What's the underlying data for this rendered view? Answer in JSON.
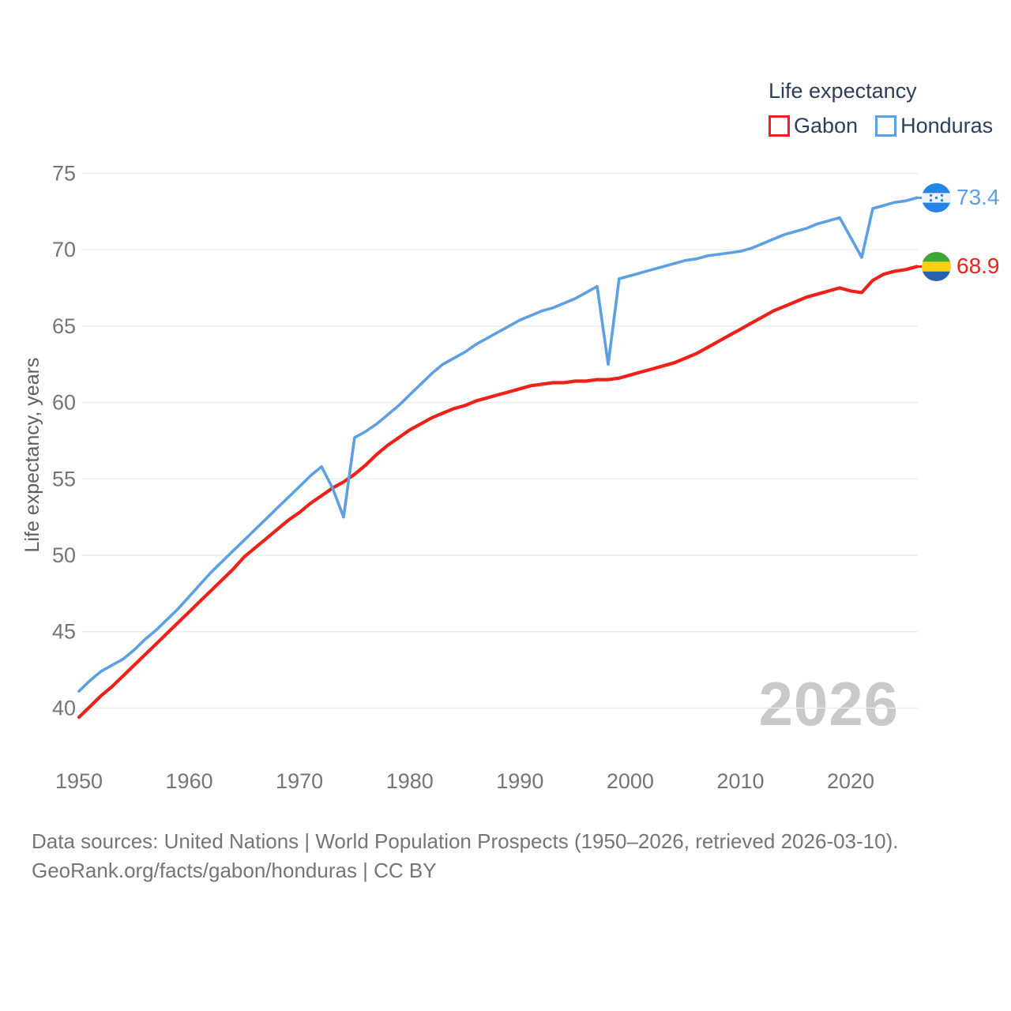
{
  "legend": {
    "title": "Life expectancy",
    "items": [
      {
        "label": "Gabon",
        "color": "#ef2017"
      },
      {
        "label": "Honduras",
        "color": "#5c9fe2"
      }
    ]
  },
  "y_axis": {
    "title": "Life expectancy, years",
    "ticks": [
      40,
      45,
      50,
      55,
      60,
      65,
      70,
      75
    ]
  },
  "x_axis": {
    "ticks": [
      1950,
      1960,
      1970,
      1980,
      1990,
      2000,
      2010,
      2020
    ]
  },
  "end_labels": {
    "honduras": {
      "value": "73.4",
      "flag": "honduras-flag"
    },
    "gabon": {
      "value": "68.9",
      "flag": "gabon-flag"
    }
  },
  "watermark": "2026",
  "footer": {
    "line1": "Data sources: United Nations | World Population Prospects (1950–2026, retrieved 2026-03-10).",
    "line2": "GeoRank.org/facts/gabon/honduras | CC BY"
  },
  "chart_data": {
    "type": "line",
    "title": "Life expectancy",
    "xlabel": "",
    "ylabel": "Life expectancy, years",
    "x_start": 1950,
    "x_end": 2026,
    "xlim": [
      1950,
      2026
    ],
    "ylim": [
      39,
      75.5
    ],
    "grid": "horizontal",
    "legend_position": "top-right",
    "xticks": [
      1950,
      1960,
      1970,
      1980,
      1990,
      2000,
      2010,
      2020
    ],
    "yticks": [
      40,
      45,
      50,
      55,
      60,
      65,
      70,
      75
    ],
    "series": [
      {
        "name": "Gabon",
        "color": "#ef2017",
        "end_value": 68.9,
        "values": [
          39.4,
          40.1,
          40.8,
          41.4,
          42.1,
          42.8,
          43.5,
          44.2,
          44.9,
          45.6,
          46.3,
          47.0,
          47.7,
          48.4,
          49.1,
          49.9,
          50.5,
          51.1,
          51.7,
          52.3,
          52.8,
          53.4,
          53.9,
          54.4,
          54.8,
          55.3,
          55.9,
          56.6,
          57.2,
          57.7,
          58.2,
          58.6,
          59.0,
          59.3,
          59.6,
          59.8,
          60.1,
          60.3,
          60.5,
          60.7,
          60.9,
          61.1,
          61.2,
          61.3,
          61.3,
          61.4,
          61.4,
          61.5,
          61.5,
          61.6,
          61.8,
          62.0,
          62.2,
          62.4,
          62.6,
          62.9,
          63.2,
          63.6,
          64.0,
          64.4,
          64.8,
          65.2,
          65.6,
          66.0,
          66.3,
          66.6,
          66.9,
          67.1,
          67.3,
          67.5,
          67.3,
          67.2,
          68.0,
          68.4,
          68.6,
          68.7,
          68.9
        ]
      },
      {
        "name": "Honduras",
        "color": "#5c9fe2",
        "end_value": 73.4,
        "values": [
          41.1,
          41.8,
          42.4,
          42.8,
          43.2,
          43.8,
          44.5,
          45.1,
          45.8,
          46.5,
          47.3,
          48.1,
          48.9,
          49.6,
          50.3,
          51.0,
          51.7,
          52.4,
          53.1,
          53.8,
          54.5,
          55.2,
          55.8,
          54.4,
          52.5,
          57.7,
          58.1,
          58.6,
          59.2,
          59.8,
          60.5,
          61.2,
          61.9,
          62.5,
          62.9,
          63.3,
          63.8,
          64.2,
          64.6,
          65.0,
          65.4,
          65.7,
          66.0,
          66.2,
          66.5,
          66.8,
          67.2,
          67.6,
          62.5,
          68.1,
          68.3,
          68.5,
          68.7,
          68.9,
          69.1,
          69.3,
          69.4,
          69.6,
          69.7,
          69.8,
          69.9,
          70.1,
          70.4,
          70.7,
          71.0,
          71.2,
          71.4,
          71.7,
          71.9,
          72.1,
          70.8,
          69.5,
          72.7,
          72.9,
          73.1,
          73.2,
          73.4
        ]
      }
    ]
  }
}
